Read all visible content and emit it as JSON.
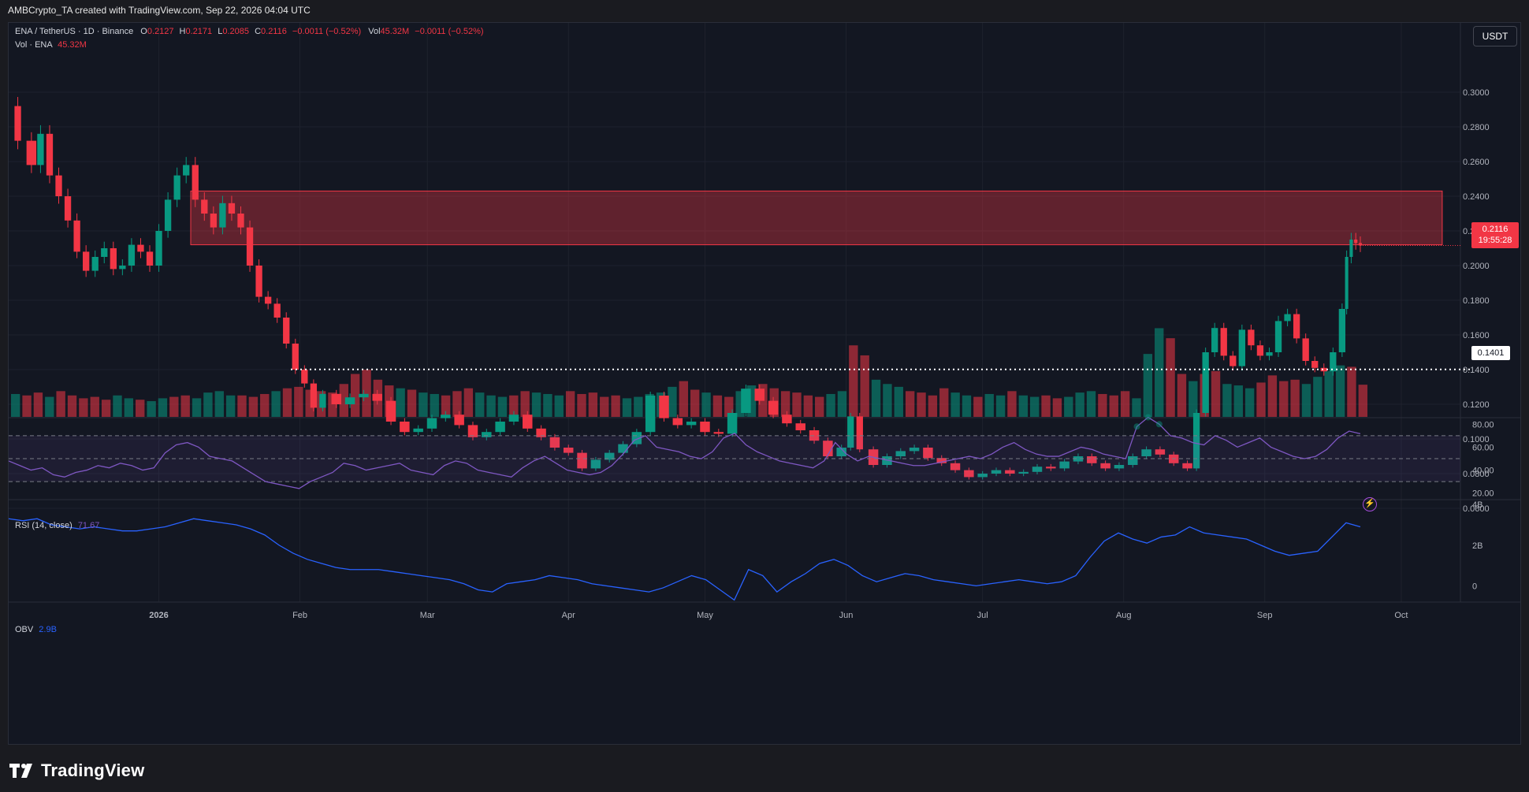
{
  "header": {
    "creator": "AMBCrypto_TA created with TradingView.com, Sep 22, 2026 04:04 UTC"
  },
  "legend": {
    "symbol": "ENA / TetherUS · 1D · Binance",
    "o_label": "O",
    "o": "0.2127",
    "h_label": "H",
    "h": "0.2171",
    "l_label": "L",
    "l": "0.2085",
    "c_label": "C",
    "c": "0.2116",
    "change": "−0.0011 (−0.52%)",
    "vol_label": "Vol",
    "vol": "45.32M",
    "vol_change": "−0.0011 (−0.52%)",
    "vol_row_label": "Vol · ENA",
    "vol_row_value": "45.32M",
    "rsi_label": "RSI (14, close)",
    "rsi_value": "71.67",
    "obv_label": "OBV",
    "obv_value": "2.9B"
  },
  "toolbar": {
    "currency": "USDT"
  },
  "price_tag": {
    "price": "0.2116",
    "countdown": "19:55:28"
  },
  "line_tag": {
    "price": "0.1401"
  },
  "footer": {
    "brand": "TradingView"
  },
  "colors": {
    "up": "#089981",
    "down": "#f23645",
    "zone": "#f23645",
    "rsi": "#7e57c2",
    "obv": "#2962ff",
    "bg": "#131722"
  },
  "chart_data": [
    {
      "type": "candlestick",
      "title": "ENA / TetherUS · 1D · Binance",
      "y_ticks": [
        "0.3000",
        "0.2800",
        "0.2600",
        "0.2400",
        "0.2200",
        "0.2000",
        "0.1800",
        "0.1600",
        "0.1400",
        "0.1200",
        "0.1000",
        "0.0800",
        "0.0600"
      ],
      "ylim": [
        0.048,
        0.308
      ],
      "x_ticks": [
        "2026",
        "Feb",
        "Mar",
        "Apr",
        "May",
        "Jun",
        "Jul",
        "Aug",
        "Sep",
        "Oct"
      ],
      "x_tick_dates": [
        "2026-01-01",
        "2026-02-01",
        "2026-03-01",
        "2026-04-01",
        "2026-05-01",
        "2026-06-01",
        "2026-07-01",
        "2026-08-01",
        "2026-09-01",
        "2026-10-01"
      ],
      "x_range": [
        "2025-11-29",
        "2026-10-14"
      ],
      "resistance_zone": {
        "from_date": "2026-01-08",
        "to_date": "2026-10-10",
        "low": 0.212,
        "high": 0.243
      },
      "horizontal_line": {
        "value": 0.1401,
        "from_date": "2026-01-30",
        "style": "dotted"
      },
      "close_series": [
        {
          "d": "2025-11-29",
          "c": 0.292
        },
        {
          "d": "2025-12-01",
          "c": 0.272
        },
        {
          "d": "2025-12-04",
          "c": 0.258
        },
        {
          "d": "2025-12-06",
          "c": 0.276
        },
        {
          "d": "2025-12-08",
          "c": 0.252
        },
        {
          "d": "2025-12-10",
          "c": 0.24
        },
        {
          "d": "2025-12-12",
          "c": 0.226
        },
        {
          "d": "2025-12-14",
          "c": 0.208
        },
        {
          "d": "2025-12-16",
          "c": 0.197
        },
        {
          "d": "2025-12-18",
          "c": 0.205
        },
        {
          "d": "2025-12-20",
          "c": 0.21
        },
        {
          "d": "2025-12-22",
          "c": 0.198
        },
        {
          "d": "2025-12-24",
          "c": 0.2
        },
        {
          "d": "2025-12-26",
          "c": 0.212
        },
        {
          "d": "2025-12-28",
          "c": 0.208
        },
        {
          "d": "2025-12-30",
          "c": 0.2
        },
        {
          "d": "2026-01-01",
          "c": 0.22
        },
        {
          "d": "2026-01-03",
          "c": 0.238
        },
        {
          "d": "2026-01-05",
          "c": 0.252
        },
        {
          "d": "2026-01-07",
          "c": 0.258
        },
        {
          "d": "2026-01-09",
          "c": 0.238
        },
        {
          "d": "2026-01-11",
          "c": 0.23
        },
        {
          "d": "2026-01-13",
          "c": 0.222
        },
        {
          "d": "2026-01-15",
          "c": 0.236
        },
        {
          "d": "2026-01-17",
          "c": 0.23
        },
        {
          "d": "2026-01-19",
          "c": 0.222
        },
        {
          "d": "2026-01-21",
          "c": 0.2
        },
        {
          "d": "2026-01-23",
          "c": 0.182
        },
        {
          "d": "2026-01-25",
          "c": 0.178
        },
        {
          "d": "2026-01-27",
          "c": 0.17
        },
        {
          "d": "2026-01-29",
          "c": 0.155
        },
        {
          "d": "2026-01-31",
          "c": 0.14
        },
        {
          "d": "2026-02-02",
          "c": 0.132
        },
        {
          "d": "2026-02-04",
          "c": 0.118
        },
        {
          "d": "2026-02-06",
          "c": 0.126
        },
        {
          "d": "2026-02-09",
          "c": 0.12
        },
        {
          "d": "2026-02-12",
          "c": 0.124
        },
        {
          "d": "2026-02-15",
          "c": 0.126
        },
        {
          "d": "2026-02-18",
          "c": 0.122
        },
        {
          "d": "2026-02-21",
          "c": 0.11
        },
        {
          "d": "2026-02-24",
          "c": 0.104
        },
        {
          "d": "2026-02-27",
          "c": 0.106
        },
        {
          "d": "2026-03-02",
          "c": 0.112
        },
        {
          "d": "2026-03-05",
          "c": 0.114
        },
        {
          "d": "2026-03-08",
          "c": 0.108
        },
        {
          "d": "2026-03-11",
          "c": 0.101
        },
        {
          "d": "2026-03-14",
          "c": 0.104
        },
        {
          "d": "2026-03-17",
          "c": 0.11
        },
        {
          "d": "2026-03-20",
          "c": 0.114
        },
        {
          "d": "2026-03-23",
          "c": 0.106
        },
        {
          "d": "2026-03-26",
          "c": 0.101
        },
        {
          "d": "2026-03-29",
          "c": 0.095
        },
        {
          "d": "2026-04-01",
          "c": 0.092
        },
        {
          "d": "2026-04-04",
          "c": 0.083
        },
        {
          "d": "2026-04-07",
          "c": 0.088
        },
        {
          "d": "2026-04-10",
          "c": 0.092
        },
        {
          "d": "2026-04-13",
          "c": 0.097
        },
        {
          "d": "2026-04-16",
          "c": 0.104
        },
        {
          "d": "2026-04-19",
          "c": 0.125
        },
        {
          "d": "2026-04-22",
          "c": 0.112
        },
        {
          "d": "2026-04-25",
          "c": 0.108
        },
        {
          "d": "2026-04-28",
          "c": 0.11
        },
        {
          "d": "2026-05-01",
          "c": 0.104
        },
        {
          "d": "2026-05-04",
          "c": 0.103
        },
        {
          "d": "2026-05-07",
          "c": 0.115
        },
        {
          "d": "2026-05-10",
          "c": 0.129
        },
        {
          "d": "2026-05-13",
          "c": 0.122
        },
        {
          "d": "2026-05-16",
          "c": 0.114
        },
        {
          "d": "2026-05-19",
          "c": 0.109
        },
        {
          "d": "2026-05-22",
          "c": 0.105
        },
        {
          "d": "2026-05-25",
          "c": 0.099
        },
        {
          "d": "2026-05-28",
          "c": 0.09
        },
        {
          "d": "2026-05-31",
          "c": 0.095
        },
        {
          "d": "2026-06-02",
          "c": 0.113
        },
        {
          "d": "2026-06-04",
          "c": 0.094
        },
        {
          "d": "2026-06-07",
          "c": 0.085
        },
        {
          "d": "2026-06-10",
          "c": 0.09
        },
        {
          "d": "2026-06-13",
          "c": 0.093
        },
        {
          "d": "2026-06-16",
          "c": 0.095
        },
        {
          "d": "2026-06-19",
          "c": 0.089
        },
        {
          "d": "2026-06-22",
          "c": 0.086
        },
        {
          "d": "2026-06-25",
          "c": 0.082
        },
        {
          "d": "2026-06-28",
          "c": 0.078
        },
        {
          "d": "2026-07-01",
          "c": 0.08
        },
        {
          "d": "2026-07-04",
          "c": 0.082
        },
        {
          "d": "2026-07-07",
          "c": 0.08
        },
        {
          "d": "2026-07-10",
          "c": 0.081
        },
        {
          "d": "2026-07-13",
          "c": 0.084
        },
        {
          "d": "2026-07-16",
          "c": 0.083
        },
        {
          "d": "2026-07-19",
          "c": 0.087
        },
        {
          "d": "2026-07-22",
          "c": 0.09
        },
        {
          "d": "2026-07-25",
          "c": 0.086
        },
        {
          "d": "2026-07-28",
          "c": 0.083
        },
        {
          "d": "2026-07-31",
          "c": 0.085
        },
        {
          "d": "2026-08-03",
          "c": 0.09
        },
        {
          "d": "2026-08-06",
          "c": 0.094
        },
        {
          "d": "2026-08-09",
          "c": 0.091
        },
        {
          "d": "2026-08-12",
          "c": 0.086
        },
        {
          "d": "2026-08-15",
          "c": 0.083
        },
        {
          "d": "2026-08-17",
          "c": 0.115
        },
        {
          "d": "2026-08-19",
          "c": 0.15
        },
        {
          "d": "2026-08-21",
          "c": 0.164
        },
        {
          "d": "2026-08-23",
          "c": 0.148
        },
        {
          "d": "2026-08-25",
          "c": 0.142
        },
        {
          "d": "2026-08-27",
          "c": 0.163
        },
        {
          "d": "2026-08-29",
          "c": 0.154
        },
        {
          "d": "2026-08-31",
          "c": 0.148
        },
        {
          "d": "2026-09-02",
          "c": 0.15
        },
        {
          "d": "2026-09-04",
          "c": 0.168
        },
        {
          "d": "2026-09-06",
          "c": 0.172
        },
        {
          "d": "2026-09-08",
          "c": 0.158
        },
        {
          "d": "2026-09-10",
          "c": 0.145
        },
        {
          "d": "2026-09-12",
          "c": 0.141
        },
        {
          "d": "2026-09-14",
          "c": 0.139
        },
        {
          "d": "2026-09-16",
          "c": 0.15
        },
        {
          "d": "2026-09-18",
          "c": 0.175
        },
        {
          "d": "2026-09-19",
          "c": 0.205
        },
        {
          "d": "2026-09-20",
          "c": 0.215
        },
        {
          "d": "2026-09-21",
          "c": 0.213
        },
        {
          "d": "2026-09-22",
          "c": 0.2116
        }
      ]
    },
    {
      "type": "bar",
      "title": "Vol · ENA",
      "note": "volume histogram, values in millions of ENA (estimated)",
      "values_m": [
        32,
        30,
        34,
        28,
        36,
        30,
        26,
        28,
        24,
        30,
        26,
        24,
        22,
        26,
        28,
        30,
        26,
        34,
        36,
        30,
        30,
        28,
        32,
        36,
        40,
        42,
        38,
        36,
        34,
        46,
        60,
        66,
        52,
        44,
        40,
        38,
        34,
        32,
        30,
        36,
        40,
        34,
        30,
        28,
        30,
        36,
        34,
        32,
        30,
        36,
        32,
        34,
        28,
        30,
        26,
        28,
        32,
        34,
        42,
        50,
        38,
        34,
        30,
        28,
        36,
        44,
        46,
        40,
        36,
        34,
        30,
        28,
        32,
        36,
        100,
        86,
        52,
        46,
        42,
        36,
        34,
        30,
        40,
        34,
        30,
        28,
        32,
        30,
        36,
        30,
        28,
        30,
        26,
        28,
        34,
        36,
        32,
        30,
        36,
        26,
        88,
        124,
        110,
        60,
        50,
        60,
        64,
        46,
        44,
        40,
        48,
        58,
        50,
        52,
        46,
        56,
        64,
        72,
        70,
        45
      ]
    },
    {
      "type": "line",
      "title": "RSI (14, close)",
      "ylim": [
        15,
        85
      ],
      "y_ticks": [
        "80.00",
        "60.00",
        "40.00",
        "20.00"
      ],
      "bands": {
        "upper": 70,
        "middle": 50,
        "lower": 30
      },
      "values": [
        48,
        44,
        40,
        42,
        36,
        34,
        38,
        40,
        44,
        42,
        46,
        44,
        40,
        42,
        55,
        62,
        64,
        60,
        52,
        50,
        48,
        42,
        36,
        30,
        28,
        26,
        24,
        30,
        34,
        38,
        46,
        44,
        40,
        42,
        44,
        46,
        40,
        38,
        36,
        44,
        48,
        46,
        40,
        38,
        36,
        34,
        42,
        48,
        52,
        46,
        40,
        38,
        36,
        38,
        44,
        54,
        66,
        70,
        60,
        58,
        56,
        52,
        50,
        56,
        68,
        72,
        62,
        56,
        52,
        48,
        46,
        44,
        42,
        48,
        64,
        54,
        48,
        52,
        50,
        48,
        46,
        44,
        44,
        46,
        48,
        50,
        52,
        50,
        54,
        60,
        64,
        58,
        54,
        52,
        52,
        56,
        60,
        58,
        54,
        52,
        50,
        78,
        86,
        80,
        70,
        68,
        64,
        62,
        70,
        66,
        60,
        64,
        68,
        60,
        56,
        52,
        50,
        52,
        58,
        68,
        74,
        71.67
      ]
    },
    {
      "type": "line",
      "title": "OBV",
      "ylim": [
        -0.8,
        4.2
      ],
      "y_ticks": [
        "4B",
        "2B",
        "0"
      ],
      "values_b": [
        3.3,
        3.2,
        3.3,
        3.0,
        2.9,
        2.8,
        2.9,
        2.8,
        2.7,
        2.7,
        2.8,
        2.9,
        3.1,
        3.3,
        3.2,
        3.1,
        3.0,
        2.8,
        2.5,
        2.0,
        1.6,
        1.3,
        1.1,
        0.9,
        0.8,
        0.8,
        0.8,
        0.7,
        0.6,
        0.5,
        0.4,
        0.3,
        0.1,
        -0.2,
        -0.3,
        0.1,
        0.2,
        0.3,
        0.5,
        0.4,
        0.3,
        0.1,
        0.0,
        -0.1,
        -0.2,
        -0.3,
        -0.1,
        0.2,
        0.5,
        0.3,
        -0.2,
        -0.7,
        0.8,
        0.5,
        -0.3,
        0.2,
        0.6,
        1.1,
        1.3,
        1.0,
        0.5,
        0.2,
        0.4,
        0.6,
        0.5,
        0.3,
        0.2,
        0.1,
        0.0,
        0.1,
        0.2,
        0.3,
        0.2,
        0.1,
        0.2,
        0.5,
        1.4,
        2.2,
        2.6,
        2.3,
        2.1,
        2.4,
        2.5,
        2.9,
        2.6,
        2.5,
        2.4,
        2.3,
        2.0,
        1.7,
        1.5,
        1.6,
        1.7,
        2.4,
        3.1,
        2.9
      ]
    }
  ]
}
